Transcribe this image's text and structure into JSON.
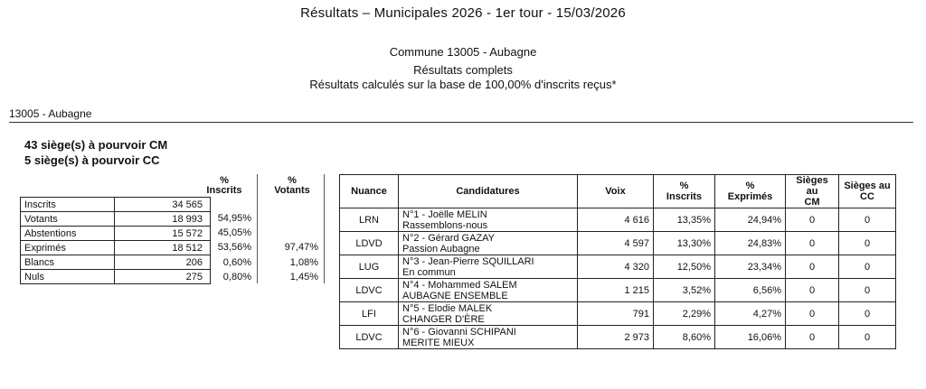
{
  "header": {
    "title": "Résultats – Municipales 2026 - 1er tour - 15/03/2026",
    "commune_line": "Commune 13005 - Aubagne",
    "results_line": "Résultats complets",
    "basis_line": "Résultats calculés sur la base de 100,00% d'inscrits reçus*"
  },
  "section": {
    "label": "13005 - Aubagne",
    "seats_cm": "43 siège(s) à pourvoir CM",
    "seats_cc": "5 siège(s) à pourvoir CC"
  },
  "participation": {
    "pct_inscrits_header": {
      "line1": "%",
      "line2": "Inscrits"
    },
    "pct_votants_header": {
      "line1": "%",
      "line2": "Votants"
    },
    "rows": [
      {
        "label": "Inscrits",
        "value": "34 565",
        "pct_inscrits": "",
        "pct_votants": ""
      },
      {
        "label": "Votants",
        "value": "18 993",
        "pct_inscrits": "54,95%",
        "pct_votants": ""
      },
      {
        "label": "Abstentions",
        "value": "15 572",
        "pct_inscrits": "45,05%",
        "pct_votants": ""
      },
      {
        "label": "Exprimés",
        "value": "18 512",
        "pct_inscrits": "53,56%",
        "pct_votants": "97,47%"
      },
      {
        "label": "Blancs",
        "value": "206",
        "pct_inscrits": "0,60%",
        "pct_votants": "1,08%"
      },
      {
        "label": "Nuls",
        "value": "275",
        "pct_inscrits": "0,80%",
        "pct_votants": "1,45%"
      }
    ]
  },
  "results": {
    "headers": {
      "nuance": "Nuance",
      "candidatures": "Candidatures",
      "voix": "Voix",
      "pct_inscrits_l1": "%",
      "pct_inscrits_l2": "Inscrits",
      "pct_exprimes_l1": "%",
      "pct_exprimes_l2": "Exprimés",
      "sieges_cm_l1": "Sièges au",
      "sieges_cm_l2": "CM",
      "sieges_cc_l1": "Sièges au",
      "sieges_cc_l2": "CC"
    },
    "rows": [
      {
        "nuance": "LRN",
        "candidate": "N°1 - Joëlle MELIN",
        "list": "Rassemblons-nous",
        "voix": "4 616",
        "pct_inscrits": "13,35%",
        "pct_exprimes": "24,94%",
        "sieges_cm": "0",
        "sieges_cc": "0"
      },
      {
        "nuance": "LDVD",
        "candidate": "N°2 - Gérard GAZAY",
        "list": "Passion Aubagne",
        "voix": "4 597",
        "pct_inscrits": "13,30%",
        "pct_exprimes": "24,83%",
        "sieges_cm": "0",
        "sieges_cc": "0"
      },
      {
        "nuance": "LUG",
        "candidate": "N°3 - Jean-Pierre SQUILLARI",
        "list": "En commun",
        "voix": "4 320",
        "pct_inscrits": "12,50%",
        "pct_exprimes": "23,34%",
        "sieges_cm": "0",
        "sieges_cc": "0"
      },
      {
        "nuance": "LDVC",
        "candidate": "N°4 - Mohammed SALEM",
        "list": "AUBAGNE ENSEMBLE",
        "voix": "1 215",
        "pct_inscrits": "3,52%",
        "pct_exprimes": "6,56%",
        "sieges_cm": "0",
        "sieges_cc": "0"
      },
      {
        "nuance": "LFI",
        "candidate": "N°5 - Elodie MALEK",
        "list": "CHANGER D'ÈRE",
        "voix": "791",
        "pct_inscrits": "2,29%",
        "pct_exprimes": "4,27%",
        "sieges_cm": "0",
        "sieges_cc": "0"
      },
      {
        "nuance": "LDVC",
        "candidate": "N°6 - Giovanni SCHIPANI",
        "list": "MERITE MIEUX",
        "voix": "2 973",
        "pct_inscrits": "8,60%",
        "pct_exprimes": "16,06%",
        "sieges_cm": "0",
        "sieges_cc": "0"
      }
    ]
  }
}
